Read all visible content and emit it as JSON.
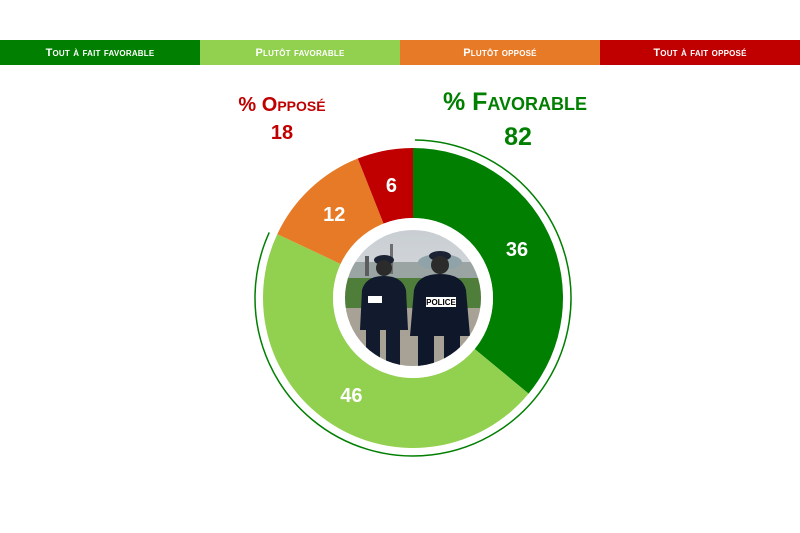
{
  "legend": [
    {
      "label": "Tout à fait favorable",
      "color": "#007F00"
    },
    {
      "label": "Plutôt favorable",
      "color": "#92D050"
    },
    {
      "label": "Plutôt opposé",
      "color": "#E77A26"
    },
    {
      "label": "Tout à fait opposé",
      "color": "#C00000"
    }
  ],
  "groups": {
    "favorable": {
      "title": "% Favorable",
      "value": "82",
      "color": "#007F00"
    },
    "oppose": {
      "title": "% Opposé",
      "value": "18",
      "color": "#C00000"
    }
  },
  "chart_data": {
    "type": "pie",
    "categories": [
      "Tout à fait favorable",
      "Plutôt favorable",
      "Plutôt opposé",
      "Tout à fait opposé"
    ],
    "values": [
      36,
      46,
      12,
      6
    ],
    "colors": [
      "#007F00",
      "#92D050",
      "#E77A26",
      "#C00000"
    ],
    "labels": [
      "36",
      "46",
      "12",
      "6"
    ],
    "donut": true,
    "totals": {
      "favorable": 82,
      "oppose": 18
    },
    "center_image": "police-officers-photo"
  }
}
